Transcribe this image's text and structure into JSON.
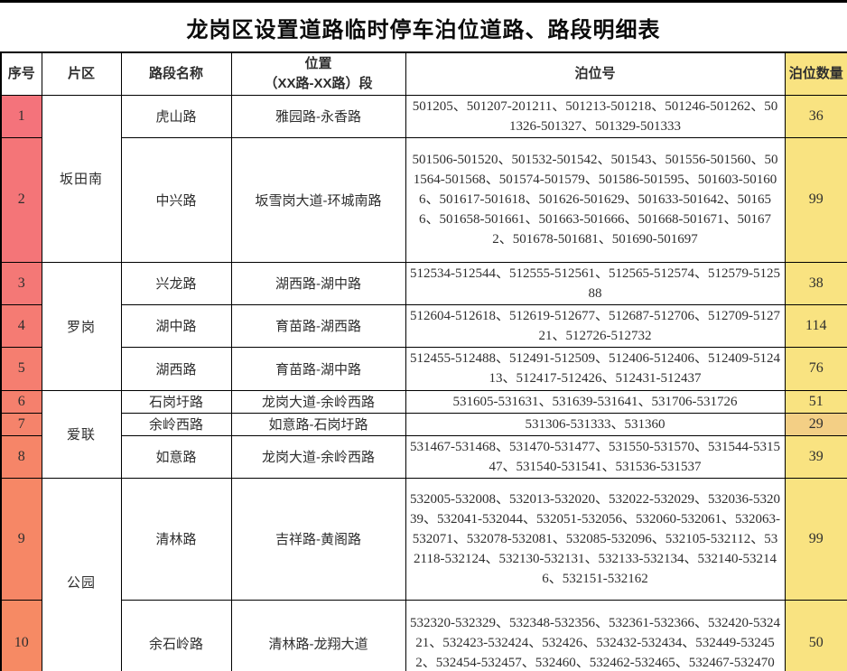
{
  "title": "龙岗区设置道路临时停车泊位道路、路段明细表",
  "colors": {
    "serial_bg_top": "#f4737b",
    "serial_bg_bottom": "#f68a64",
    "count_bg": "#f9e381",
    "count_bg_dim": "#f3cf85",
    "header_count_bg": "#f9e381",
    "border": "#000000"
  },
  "table": {
    "headers": [
      "序号",
      "片区",
      "路段名称",
      "位置\n（XX路-XX路）段",
      "泊位号",
      "泊位数量"
    ],
    "rows": [
      {
        "no": "1",
        "district": "坂田南",
        "district_span": 2,
        "road": "虎山路",
        "location": "雅园路-永香路",
        "berths": "501205、501207-201211、501213-501218、501246-501262、501326-501327、501329-501333",
        "count": "36",
        "no_bg": "#f4737b",
        "count_bg": "#f9e381"
      },
      {
        "no": "2",
        "road": "中兴路",
        "location": "坂雪岗大道-环城南路",
        "berths": "501506-501520、501532-501542、501543、501556-501560、501564-501568、501574-501579、501586-501595、501603-501606、501617-501618、501626-501629、501633-501642、501656、501658-501661、501663-501666、501668-501671、501672、501678-501681、501690-501697",
        "count": "99",
        "no_bg": "#f47578",
        "count_bg": "#f9e381"
      },
      {
        "no": "3",
        "district": "罗岗",
        "district_span": 3,
        "road": "兴龙路",
        "location": "湖西路-湖中路",
        "berths": "512534-512544、512555-512561、512565-512574、512579-512588",
        "count": "38",
        "no_bg": "#f47876",
        "count_bg": "#f9e381"
      },
      {
        "no": "4",
        "road": "湖中路",
        "location": "育苗路-湖西路",
        "berths": "512604-512618、512619-512677、512687-512706、512709-512721、512726-512732",
        "count": "114",
        "no_bg": "#f57b73",
        "count_bg": "#f9e381"
      },
      {
        "no": "5",
        "road": "湖西路",
        "location": "育苗路-湖中路",
        "berths": "512455-512488、512491-512509、512406-512406、512409-512413、512417-512426、512431-512437",
        "count": "76",
        "no_bg": "#f57e70",
        "count_bg": "#f9e381"
      },
      {
        "no": "6",
        "district": "爱联",
        "district_span": 3,
        "road": "石岗圩路",
        "location": "龙岗大道-余岭西路",
        "berths": "531605-531631、531639-531641、531706-531726",
        "count": "51",
        "no_bg": "#f5806d",
        "count_bg": "#f9e381"
      },
      {
        "no": "7",
        "road": "余岭西路",
        "location": "如意路-石岗圩路",
        "berths": "531306-531333、531360",
        "count": "29",
        "no_bg": "#f5836b",
        "count_bg": "#f3cf85"
      },
      {
        "no": "8",
        "road": "如意路",
        "location": "龙岗大道-余岭西路",
        "berths": "531467-531468、531470-531477、531550-531570、531544-531547、531540-531541、531536-531537",
        "count": "39",
        "no_bg": "#f68568",
        "count_bg": "#f9e381"
      },
      {
        "no": "9",
        "district": "公园",
        "district_span": 2,
        "road": "清林路",
        "location": "吉祥路-黄阁路",
        "berths": "532005-532008、532013-532020、532022-532029、532036-532039、532041-532044、532051-532056、532060-532061、532063-532071、532078-532081、532085-532096、532105-532112、532118-532124、532130-532131、532133-532134、532140-532146、532151-532162",
        "count": "99",
        "no_bg": "#f68766",
        "count_bg": "#f9e381"
      },
      {
        "no": "10",
        "road": "余石岭路",
        "location": "清林路-龙翔大道",
        "berths": "532320-532329、532348-532356、532361-532366、532420-532421、532423-532424、532426、532432-532434、532449-532452、532454-532457、532460、532462-532465、532467-532470",
        "count": "50",
        "no_bg": "#f68a64",
        "count_bg": "#f9e381"
      }
    ]
  }
}
